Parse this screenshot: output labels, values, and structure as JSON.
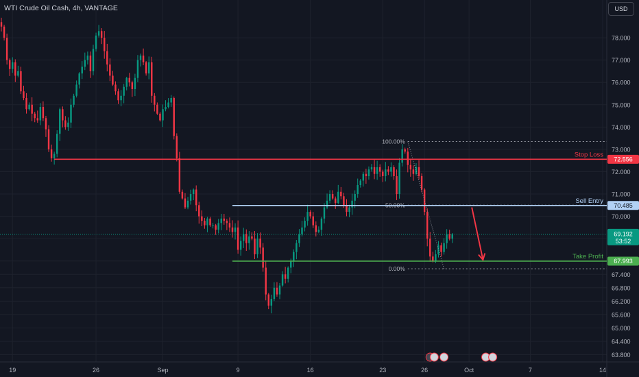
{
  "header": {
    "title": "WTI Crude Oil Cash, 4h, VANTAGE",
    "currency": "USD"
  },
  "chart_data": {
    "type": "candlestick",
    "title": "WTI Crude Oil Cash, 4h, VANTAGE",
    "ylim": [
      63.6,
      79.2
    ],
    "y_ticks": [
      "63.800",
      "64.400",
      "65.000",
      "65.600",
      "66.200",
      "66.800",
      "67.400",
      "68.000",
      "69.000",
      "70.000",
      "71.000",
      "72.000",
      "73.000",
      "74.000",
      "75.000",
      "76.000",
      "77.000",
      "78.000"
    ],
    "x_ticks": [
      {
        "label": "19",
        "bar": 4
      },
      {
        "label": "26",
        "bar": 34
      },
      {
        "label": "Sep",
        "bar": 58
      },
      {
        "label": "9",
        "bar": 85
      },
      {
        "label": "16",
        "bar": 111
      },
      {
        "label": "23",
        "bar": 137
      },
      {
        "label": "26",
        "bar": 152
      },
      {
        "label": "Oct",
        "bar": 168
      },
      {
        "label": "7",
        "bar": 190
      },
      {
        "label": "14",
        "bar": 216
      }
    ],
    "x_span": [
      0,
      216
    ],
    "closes": [
      78.5,
      78.0,
      77.0,
      76.6,
      76.9,
      76.3,
      76.5,
      75.6,
      75.3,
      74.8,
      75.0,
      74.6,
      74.4,
      74.3,
      74.9,
      74.4,
      73.9,
      73.0,
      72.6,
      72.8,
      73.7,
      74.8,
      74.3,
      74.0,
      74.2,
      75.0,
      75.4,
      75.9,
      76.4,
      76.7,
      77.0,
      77.2,
      76.5,
      77.5,
      78.1,
      78.3,
      78.0,
      77.4,
      76.8,
      76.3,
      75.9,
      75.6,
      75.2,
      75.4,
      75.8,
      76.2,
      76.0,
      75.7,
      76.2,
      77.0,
      77.2,
      76.9,
      76.4,
      76.9,
      75.4,
      75.0,
      74.6,
      74.3,
      74.8,
      74.9,
      75.1,
      75.3,
      73.6,
      72.6,
      71.1,
      70.8,
      70.4,
      70.7,
      71.0,
      71.2,
      70.5,
      70.0,
      69.8,
      69.6,
      69.9,
      69.6,
      69.6,
      69.4,
      69.7,
      69.9,
      69.8,
      69.7,
      69.5,
      69.3,
      69.5,
      68.5,
      68.9,
      69.2,
      68.8,
      69.1,
      69.0,
      68.3,
      69.0,
      68.6,
      67.7,
      66.5,
      66.0,
      66.3,
      66.8,
      66.5,
      66.9,
      67.4,
      67.2,
      67.7,
      68.0,
      68.4,
      68.8,
      69.2,
      69.5,
      69.8,
      70.2,
      70.0,
      69.6,
      69.3,
      69.4,
      69.9,
      70.4,
      70.7,
      71.0,
      70.8,
      70.6,
      71.1,
      70.9,
      70.5,
      70.2,
      70.4,
      70.7,
      71.0,
      71.4,
      71.6,
      71.9,
      71.8,
      72.1,
      72.2,
      71.9,
      72.2,
      72.0,
      71.8,
      72.1,
      72.0,
      72.2,
      71.8,
      71.0,
      72.4,
      73.0,
      72.9,
      72.3,
      72.1,
      71.9,
      72.2,
      71.8,
      71.2,
      70.2,
      69.0,
      68.2,
      68.0,
      68.3,
      68.7,
      68.4,
      68.8,
      69.2,
      69.0,
      69.2
    ],
    "annotations": {
      "stop_loss": {
        "label": "Stop Loss",
        "price": "72.556",
        "value": 72.556,
        "from_bar": 19,
        "to_bar": 216,
        "color": "#f23645"
      },
      "sell_entry": {
        "label": "Sell Entry",
        "price": "70.485",
        "value": 70.485,
        "from_bar": 83,
        "to_bar": 216,
        "color": "#b2d1f5"
      },
      "take_profit": {
        "label": "Take Profit",
        "price": "67.993",
        "value": 67.993,
        "from_bar": 83,
        "to_bar": 216,
        "color": "#4caf50"
      },
      "fib": {
        "levels": [
          {
            "label": "100.00%",
            "value": 73.35
          },
          {
            "label": "50.00%",
            "value": 70.5
          },
          {
            "label": "0.00%",
            "value": 67.65
          }
        ],
        "from_bar": 146,
        "to_bar": 216
      },
      "current_price": {
        "price": "69.192",
        "value": 69.192,
        "countdown": "53:52",
        "color": "#089981"
      },
      "arrow": {
        "from_bar": 169,
        "from_value": 70.4,
        "to_bar": 173,
        "to_value": 68.05,
        "color": "#f23645"
      }
    }
  }
}
